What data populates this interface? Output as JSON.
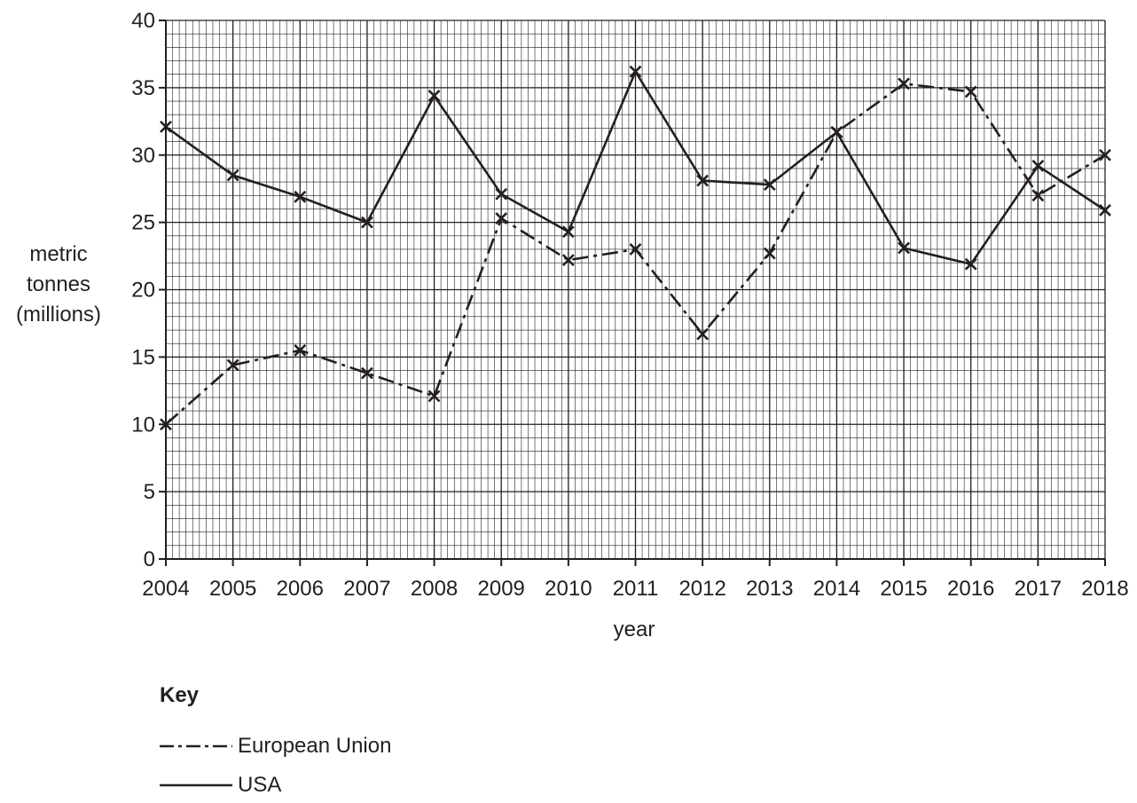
{
  "chart_data": {
    "type": "line",
    "title": "",
    "xlabel": "year",
    "ylabel_lines": [
      "metric",
      "tonnes",
      "(millions)"
    ],
    "x": [
      2004,
      2005,
      2006,
      2007,
      2008,
      2009,
      2010,
      2011,
      2012,
      2013,
      2014,
      2015,
      2016,
      2017,
      2018
    ],
    "xlim": [
      2004,
      2018
    ],
    "ylim": [
      0,
      40
    ],
    "yticks": [
      0,
      5,
      10,
      15,
      20,
      25,
      30,
      35,
      40
    ],
    "grid": true,
    "marker": "x",
    "series": [
      {
        "name": "European Union",
        "style": "dash-dot",
        "values": [
          10,
          14.4,
          15.5,
          13.8,
          12.1,
          25.3,
          22.2,
          23,
          16.7,
          22.7,
          31.7,
          35.3,
          34.7,
          27,
          30
        ]
      },
      {
        "name": "USA",
        "style": "solid",
        "values": [
          32.1,
          28.5,
          26.9,
          25,
          34.4,
          27.1,
          24.3,
          36.2,
          28.1,
          27.8,
          31.7,
          23.1,
          21.9,
          29.2,
          25.9
        ]
      }
    ],
    "legend": {
      "title": "Key",
      "position": "bottom-left"
    },
    "colors": {
      "ink": "#231f20",
      "grid": "#231f20"
    }
  }
}
